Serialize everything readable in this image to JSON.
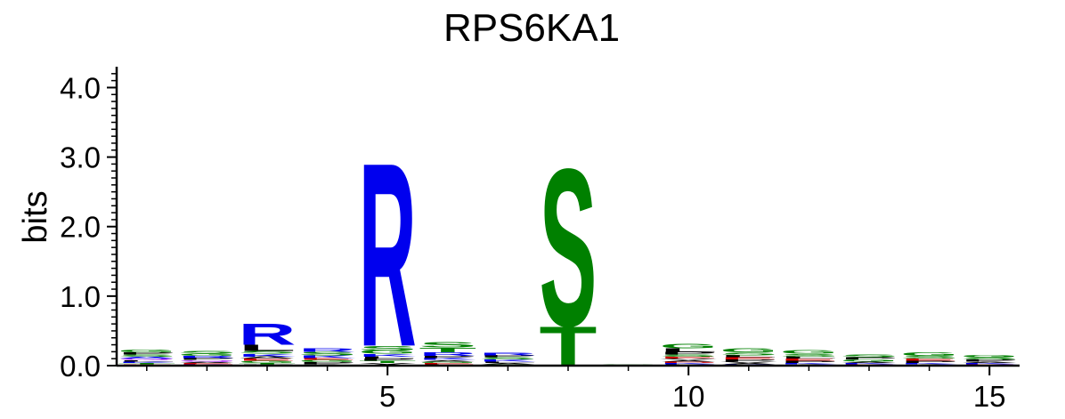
{
  "chart_data": {
    "type": "sequence-logo",
    "title": "RPS6KA1",
    "xlabel": "",
    "ylabel": "bits",
    "xlim": [
      0.5,
      15.5
    ],
    "ylim": [
      0,
      4.3
    ],
    "x_ticks": [
      5,
      10,
      15
    ],
    "y_ticks": [
      "0.0",
      "1.0",
      "2.0",
      "3.0",
      "4.0"
    ],
    "grid": false,
    "colors": {
      "blue": "#0000ee",
      "green": "#008000",
      "red": "#cc0000",
      "black": "#000000",
      "purple": "#a020f0"
    },
    "positions": [
      {
        "pos": 1,
        "letters": [
          {
            "c": "G",
            "h": 0.04,
            "col": "green"
          },
          {
            "c": "A",
            "h": 0.03,
            "col": "blue"
          },
          {
            "c": "S",
            "h": 0.03,
            "col": "green"
          },
          {
            "c": "P",
            "h": 0.03,
            "col": "black"
          },
          {
            "c": "E",
            "h": 0.02,
            "col": "red"
          },
          {
            "c": "T",
            "h": 0.02,
            "col": "green"
          },
          {
            "c": "K",
            "h": 0.02,
            "col": "blue"
          },
          {
            "c": "L",
            "h": 0.02,
            "col": "black"
          },
          {
            "c": "Q",
            "h": 0.02,
            "col": "purple"
          }
        ]
      },
      {
        "pos": 2,
        "letters": [
          {
            "c": "S",
            "h": 0.04,
            "col": "green"
          },
          {
            "c": "P",
            "h": 0.03,
            "col": "black"
          },
          {
            "c": "R",
            "h": 0.03,
            "col": "blue"
          },
          {
            "c": "G",
            "h": 0.03,
            "col": "green"
          },
          {
            "c": "K",
            "h": 0.02,
            "col": "blue"
          },
          {
            "c": "E",
            "h": 0.02,
            "col": "red"
          },
          {
            "c": "A",
            "h": 0.02,
            "col": "black"
          },
          {
            "c": "Q",
            "h": 0.02,
            "col": "purple"
          }
        ]
      },
      {
        "pos": 3,
        "letters": [
          {
            "c": "R",
            "h": 0.32,
            "col": "blue"
          },
          {
            "c": "L",
            "h": 0.09,
            "col": "black"
          },
          {
            "c": "K",
            "h": 0.04,
            "col": "blue"
          },
          {
            "c": "S",
            "h": 0.04,
            "col": "green"
          },
          {
            "c": "G",
            "h": 0.03,
            "col": "green"
          },
          {
            "c": "E",
            "h": 0.03,
            "col": "red"
          },
          {
            "c": "A",
            "h": 0.03,
            "col": "black"
          },
          {
            "c": "P",
            "h": 0.02,
            "col": "black"
          },
          {
            "c": "T",
            "h": 0.02,
            "col": "green"
          }
        ]
      },
      {
        "pos": 4,
        "letters": [
          {
            "c": "S",
            "h": 0.05,
            "col": "green"
          },
          {
            "c": "R",
            "h": 0.05,
            "col": "blue"
          },
          {
            "c": "K",
            "h": 0.04,
            "col": "blue"
          },
          {
            "c": "P",
            "h": 0.03,
            "col": "black"
          },
          {
            "c": "G",
            "h": 0.03,
            "col": "green"
          },
          {
            "c": "E",
            "h": 0.03,
            "col": "red"
          },
          {
            "c": "A",
            "h": 0.02,
            "col": "black"
          }
        ]
      },
      {
        "pos": 5,
        "letters": [
          {
            "c": "R",
            "h": 2.72,
            "col": "blue"
          },
          {
            "c": "S",
            "h": 0.07,
            "col": "green"
          },
          {
            "c": "G",
            "h": 0.05,
            "col": "green"
          },
          {
            "c": "K",
            "h": 0.04,
            "col": "blue"
          },
          {
            "c": "T",
            "h": 0.03,
            "col": "green"
          },
          {
            "c": "P",
            "h": 0.03,
            "col": "black"
          },
          {
            "c": "L",
            "h": 0.03,
            "col": "black"
          },
          {
            "c": "A",
            "h": 0.02,
            "col": "black"
          },
          {
            "c": "V",
            "h": 0.02,
            "col": "black"
          }
        ]
      },
      {
        "pos": 6,
        "letters": [
          {
            "c": "S",
            "h": 0.08,
            "col": "green"
          },
          {
            "c": "T",
            "h": 0.07,
            "col": "green"
          },
          {
            "c": "R",
            "h": 0.05,
            "col": "blue"
          },
          {
            "c": "K",
            "h": 0.03,
            "col": "blue"
          },
          {
            "c": "P",
            "h": 0.03,
            "col": "black"
          },
          {
            "c": "L",
            "h": 0.02,
            "col": "black"
          },
          {
            "c": "E",
            "h": 0.02,
            "col": "red"
          },
          {
            "c": "G",
            "h": 0.02,
            "col": "green"
          },
          {
            "c": "A",
            "h": 0.02,
            "col": "black"
          }
        ]
      },
      {
        "pos": 7,
        "letters": [
          {
            "c": "R",
            "h": 0.04,
            "col": "blue"
          },
          {
            "c": "K",
            "h": 0.03,
            "col": "blue"
          },
          {
            "c": "S",
            "h": 0.03,
            "col": "green"
          },
          {
            "c": "P",
            "h": 0.03,
            "col": "black"
          },
          {
            "c": "G",
            "h": 0.02,
            "col": "green"
          },
          {
            "c": "A",
            "h": 0.02,
            "col": "black"
          },
          {
            "c": "L",
            "h": 0.02,
            "col": "black"
          }
        ]
      },
      {
        "pos": 8,
        "letters": [
          {
            "c": "S",
            "h": 2.33,
            "col": "green"
          },
          {
            "c": "T",
            "h": 0.58,
            "col": "green"
          }
        ]
      },
      {
        "pos": 9,
        "letters": [
          {
            "c": "L",
            "h": 0.01,
            "col": "black"
          },
          {
            "c": "G",
            "h": 0.01,
            "col": "green"
          }
        ]
      },
      {
        "pos": 10,
        "letters": [
          {
            "c": "G",
            "h": 0.07,
            "col": "green"
          },
          {
            "c": "L",
            "h": 0.05,
            "col": "black"
          },
          {
            "c": "P",
            "h": 0.04,
            "col": "black"
          },
          {
            "c": "E",
            "h": 0.03,
            "col": "red"
          },
          {
            "c": "S",
            "h": 0.03,
            "col": "green"
          },
          {
            "c": "F",
            "h": 0.02,
            "col": "black"
          },
          {
            "c": "K",
            "h": 0.02,
            "col": "blue"
          },
          {
            "c": "D",
            "h": 0.02,
            "col": "red"
          },
          {
            "c": "A",
            "h": 0.02,
            "col": "black"
          },
          {
            "c": "V",
            "h": 0.02,
            "col": "black"
          }
        ]
      },
      {
        "pos": 11,
        "letters": [
          {
            "c": "G",
            "h": 0.06,
            "col": "green"
          },
          {
            "c": "S",
            "h": 0.04,
            "col": "green"
          },
          {
            "c": "P",
            "h": 0.03,
            "col": "black"
          },
          {
            "c": "E",
            "h": 0.03,
            "col": "red"
          },
          {
            "c": "L",
            "h": 0.03,
            "col": "black"
          },
          {
            "c": "K",
            "h": 0.02,
            "col": "blue"
          },
          {
            "c": "A",
            "h": 0.02,
            "col": "black"
          },
          {
            "c": "V",
            "h": 0.02,
            "col": "black"
          }
        ]
      },
      {
        "pos": 12,
        "letters": [
          {
            "c": "G",
            "h": 0.05,
            "col": "green"
          },
          {
            "c": "S",
            "h": 0.04,
            "col": "green"
          },
          {
            "c": "P",
            "h": 0.03,
            "col": "black"
          },
          {
            "c": "E",
            "h": 0.03,
            "col": "red"
          },
          {
            "c": "L",
            "h": 0.03,
            "col": "black"
          },
          {
            "c": "A",
            "h": 0.02,
            "col": "black"
          },
          {
            "c": "K",
            "h": 0.02,
            "col": "blue"
          }
        ]
      },
      {
        "pos": 13,
        "letters": [
          {
            "c": "S",
            "h": 0.04,
            "col": "green"
          },
          {
            "c": "G",
            "h": 0.03,
            "col": "green"
          },
          {
            "c": "P",
            "h": 0.03,
            "col": "black"
          },
          {
            "c": "E",
            "h": 0.02,
            "col": "red"
          },
          {
            "c": "K",
            "h": 0.02,
            "col": "blue"
          },
          {
            "c": "A",
            "h": 0.02,
            "col": "black"
          }
        ]
      },
      {
        "pos": 14,
        "letters": [
          {
            "c": "G",
            "h": 0.05,
            "col": "green"
          },
          {
            "c": "S",
            "h": 0.04,
            "col": "green"
          },
          {
            "c": "P",
            "h": 0.03,
            "col": "black"
          },
          {
            "c": "E",
            "h": 0.03,
            "col": "red"
          },
          {
            "c": "A",
            "h": 0.02,
            "col": "black"
          },
          {
            "c": "K",
            "h": 0.02,
            "col": "blue"
          }
        ]
      },
      {
        "pos": 15,
        "letters": [
          {
            "c": "P",
            "h": 0.03,
            "col": "black"
          },
          {
            "c": "S",
            "h": 0.03,
            "col": "green"
          },
          {
            "c": "G",
            "h": 0.03,
            "col": "green"
          },
          {
            "c": "E",
            "h": 0.02,
            "col": "red"
          },
          {
            "c": "K",
            "h": 0.02,
            "col": "blue"
          },
          {
            "c": "A",
            "h": 0.02,
            "col": "black"
          }
        ]
      }
    ]
  }
}
